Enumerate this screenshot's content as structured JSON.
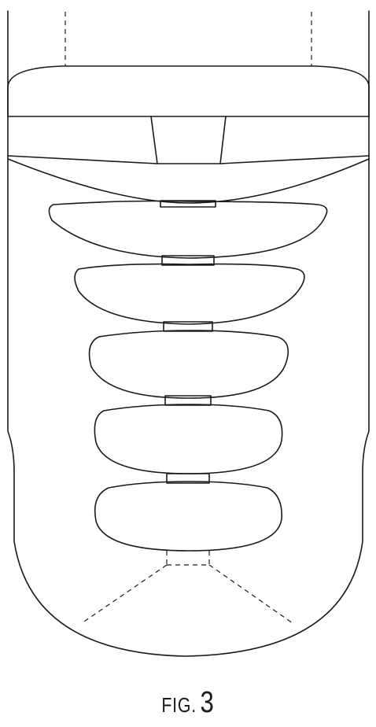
{
  "figure": {
    "prefix": "FIG.",
    "number": "3"
  }
}
